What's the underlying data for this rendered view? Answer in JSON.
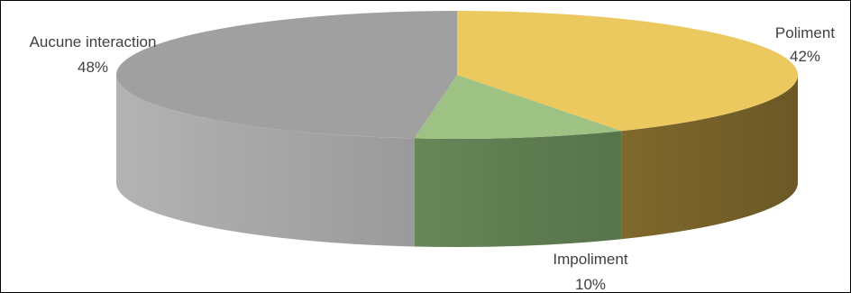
{
  "chart_data": {
    "type": "pie",
    "style": "3d",
    "title": "",
    "slices": [
      {
        "label": "Poliment",
        "value": 42,
        "value_label": "42%",
        "color": "#ECC95E",
        "side_dark": "#6B5826",
        "side_light": "#B8973A"
      },
      {
        "label": "Impoliment",
        "value": 10,
        "value_label": "10%",
        "color": "#9DC284",
        "side_dark": "#4A6440",
        "side_light": "#7EA06A"
      },
      {
        "label": "Aucune interaction",
        "value": 48,
        "value_label": "48%",
        "color": "#A0A0A0",
        "side_dark": "#7A7A7A",
        "side_light": "#B3B3B3"
      }
    ],
    "legend": "none",
    "data_labels": "outside"
  }
}
